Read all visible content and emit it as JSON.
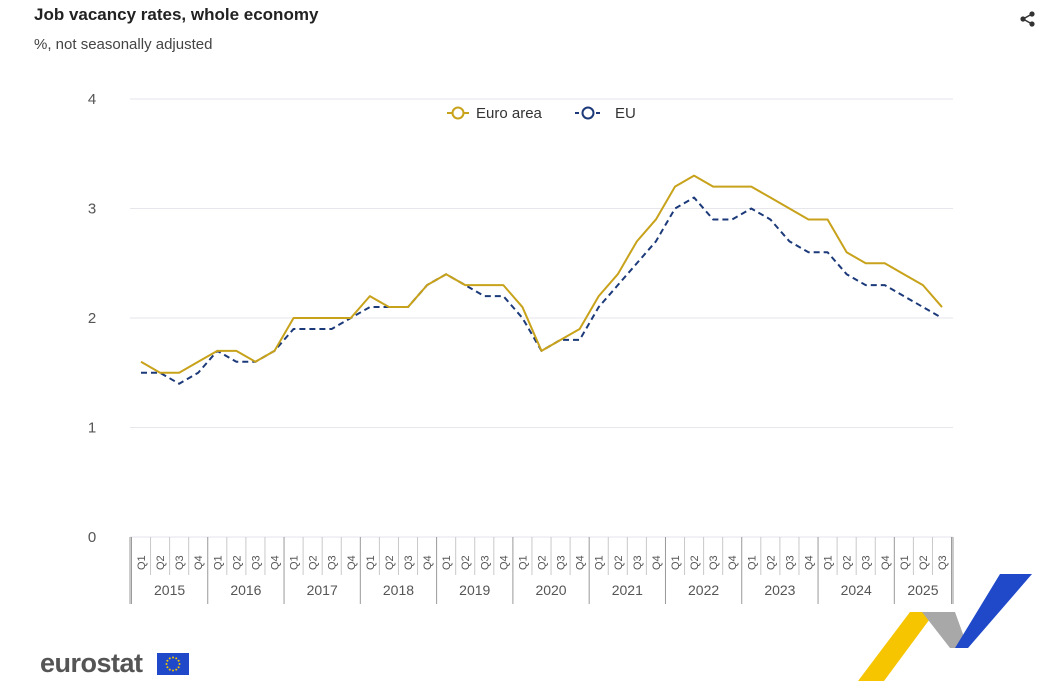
{
  "header": {
    "title": "Job vacancy rates, whole economy",
    "subtitle": "%, not seasonally adjusted",
    "share_icon": "share-icon"
  },
  "brand": {
    "logo_text": "eurostat",
    "flag_icon": "eu-flag-icon"
  },
  "colors": {
    "euro_area": "#c8a21a",
    "eu": "#1c3a7a",
    "grid": "#e6e6ec",
    "axis_text": "#555555"
  },
  "chart_data": {
    "type": "line",
    "title": "Job vacancy rates, whole economy",
    "subtitle": "%, not seasonally adjusted",
    "xlabel": "",
    "ylabel": "",
    "ylim": [
      0,
      4
    ],
    "yticks": [
      0,
      1,
      2,
      3,
      4
    ],
    "grid": true,
    "legend_position": "top-center",
    "years": [
      "2015",
      "2016",
      "2017",
      "2018",
      "2019",
      "2020",
      "2021",
      "2022",
      "2023",
      "2024",
      "2025"
    ],
    "quarter_labels": [
      "Q1",
      "Q2",
      "Q3",
      "Q4"
    ],
    "categories": [
      "2015-Q1",
      "2015-Q2",
      "2015-Q3",
      "2015-Q4",
      "2016-Q1",
      "2016-Q2",
      "2016-Q3",
      "2016-Q4",
      "2017-Q1",
      "2017-Q2",
      "2017-Q3",
      "2017-Q4",
      "2018-Q1",
      "2018-Q2",
      "2018-Q3",
      "2018-Q4",
      "2019-Q1",
      "2019-Q2",
      "2019-Q3",
      "2019-Q4",
      "2020-Q1",
      "2020-Q2",
      "2020-Q3",
      "2020-Q4",
      "2021-Q1",
      "2021-Q2",
      "2021-Q3",
      "2021-Q4",
      "2022-Q1",
      "2022-Q2",
      "2022-Q3",
      "2022-Q4",
      "2023-Q1",
      "2023-Q2",
      "2023-Q3",
      "2023-Q4",
      "2024-Q1",
      "2024-Q2",
      "2024-Q3",
      "2024-Q4",
      "2025-Q1",
      "2025-Q2",
      "2025-Q3"
    ],
    "series": [
      {
        "name": "Euro area",
        "line_style": "solid",
        "values": [
          1.6,
          1.5,
          1.5,
          1.6,
          1.7,
          1.7,
          1.6,
          1.7,
          2.0,
          2.0,
          2.0,
          2.0,
          2.2,
          2.1,
          2.1,
          2.3,
          2.4,
          2.3,
          2.3,
          2.3,
          2.1,
          1.7,
          1.8,
          1.9,
          2.2,
          2.4,
          2.7,
          2.9,
          3.2,
          3.3,
          3.2,
          3.2,
          3.2,
          3.1,
          3.0,
          2.9,
          2.9,
          2.6,
          2.5,
          2.5,
          2.4,
          2.3,
          2.1
        ]
      },
      {
        "name": "EU",
        "line_style": "dashed",
        "values": [
          1.5,
          1.5,
          1.4,
          1.5,
          1.7,
          1.6,
          1.6,
          1.7,
          1.9,
          1.9,
          1.9,
          2.0,
          2.1,
          2.1,
          2.1,
          2.3,
          2.4,
          2.3,
          2.2,
          2.2,
          2.0,
          1.7,
          1.8,
          1.8,
          2.1,
          2.3,
          2.5,
          2.7,
          3.0,
          3.1,
          2.9,
          2.9,
          3.0,
          2.9,
          2.7,
          2.6,
          2.6,
          2.4,
          2.3,
          2.3,
          2.2,
          2.1,
          2.0
        ]
      }
    ]
  }
}
